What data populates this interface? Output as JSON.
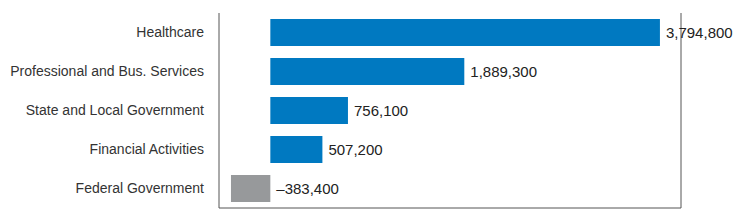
{
  "chart_data": {
    "type": "bar",
    "orientation": "horizontal",
    "categories": [
      "Healthcare",
      "Professional and Bus. Services",
      "State and Local Government",
      "Financial Activities",
      "Federal Government"
    ],
    "values": [
      3794800,
      1889300,
      756100,
      507200,
      -383400
    ],
    "value_labels": [
      "3,794,800",
      "1,889,300",
      "756,100",
      "507,200",
      "–383,400"
    ],
    "data_labels": true,
    "colors": [
      "#0079c1",
      "#0079c1",
      "#0079c1",
      "#0079c1",
      "#97999b"
    ],
    "xlim": [
      -500000,
      4000000
    ],
    "xticks": [
      0
    ],
    "grid": true,
    "tick_labels": "y"
  }
}
